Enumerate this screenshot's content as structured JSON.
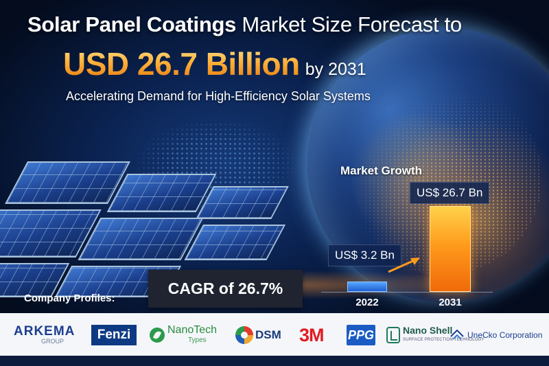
{
  "headline": {
    "line1_bold": "Solar Panel Coatings",
    "line1_rest": "Market Size Forecast to",
    "line2_big": "USD 26.7 Billion",
    "line2_small": "by 2031",
    "subtitle": "Accelerating Demand for High-Efficiency Solar Systems"
  },
  "cagr_label": "CAGR of 26.7%",
  "profiles_label": "Company Profiles:",
  "companies": [
    {
      "name": "ARKEMA",
      "sub": "GROUP"
    },
    {
      "name": "Fenzi"
    },
    {
      "name": "NanoTech",
      "sub": "Types"
    },
    {
      "name": "DSM"
    },
    {
      "name": "3M"
    },
    {
      "name": "PPG"
    },
    {
      "name": "Nano Shell",
      "sub": "SURFACE PROTECTION TECHNOLOGY"
    },
    {
      "name": "UneCko Corporation"
    }
  ],
  "colors": {
    "accent_orange": "#ffb13a",
    "bar_2022": "#2f7ae8",
    "bar_2031": "#ff9b1c"
  },
  "chart_data": {
    "type": "bar",
    "title": "Market Growth",
    "categories": [
      "2022",
      "2031"
    ],
    "values": [
      3.2,
      26.7
    ],
    "value_labels": [
      "US$ 3.2 Bn",
      "US$ 26.7 Bn"
    ],
    "xlabel": "",
    "ylabel": "",
    "grid": false
  }
}
